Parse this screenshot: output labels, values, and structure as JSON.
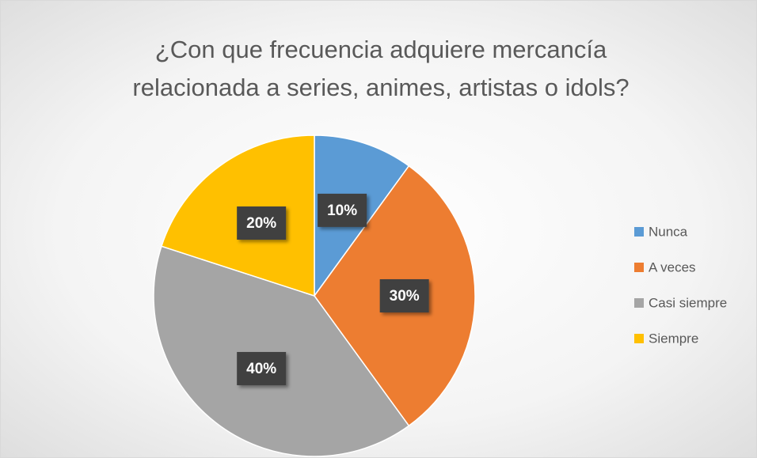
{
  "chart_data": {
    "type": "pie",
    "title": "¿Con que frecuencia adquiere mercancía relacionada a series, animes, artistas o idols?",
    "categories": [
      "Nunca",
      "A veces",
      "Casi siempre",
      "Siempre"
    ],
    "values": [
      10,
      30,
      40,
      20
    ],
    "value_labels": [
      "10%",
      "30%",
      "40%",
      "20%"
    ],
    "colors": [
      "#5b9bd5",
      "#ed7d31",
      "#a5a5a5",
      "#ffc000"
    ],
    "legend": "right"
  }
}
